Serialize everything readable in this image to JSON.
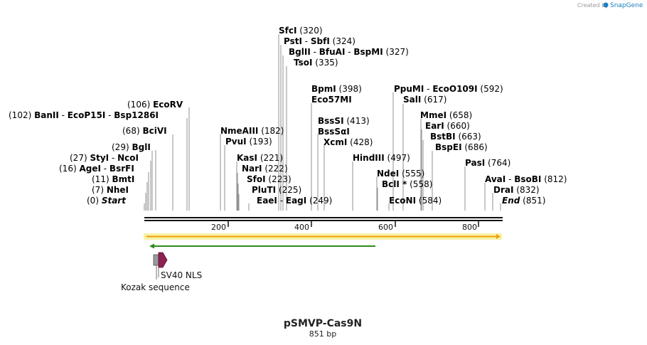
{
  "credit": {
    "prefix": "Created by",
    "brand": "SnapGene"
  },
  "title": "pSMVP-Cas9N",
  "subtitle": "851 bp",
  "scale_ticks": [
    "200",
    "400",
    "600",
    "800"
  ],
  "sites": [
    {
      "id": "start",
      "parts": [
        "Start"
      ],
      "pos": "(0)",
      "pos_first": true,
      "italic": true
    },
    {
      "id": "nhei",
      "parts": [
        "NheI"
      ],
      "pos": "(7)",
      "pos_first": true
    },
    {
      "id": "bmti",
      "parts": [
        "BmtI"
      ],
      "pos": "(11)",
      "pos_first": true
    },
    {
      "id": "agei",
      "parts": [
        "AgeI",
        "BsrFI"
      ],
      "pos": "(16)",
      "pos_first": true
    },
    {
      "id": "styi",
      "parts": [
        "StyI",
        "NcoI"
      ],
      "pos": "(27)",
      "pos_first": true
    },
    {
      "id": "bgli",
      "parts": [
        "BglI"
      ],
      "pos": "(29)",
      "pos_first": true
    },
    {
      "id": "bcivi",
      "parts": [
        "BciVI"
      ],
      "pos": "(68)",
      "pos_first": true
    },
    {
      "id": "banii",
      "parts": [
        "BanII",
        "EcoP15I",
        "Bsp1286I"
      ],
      "pos": "(102)",
      "pos_first": true
    },
    {
      "id": "ecorv",
      "parts": [
        "EcoRV"
      ],
      "pos": "(106)",
      "pos_first": true
    },
    {
      "id": "nmeaiii",
      "parts": [
        "NmeAIII"
      ],
      "pos": "(182)"
    },
    {
      "id": "pvui",
      "parts": [
        "PvuI"
      ],
      "pos": "(193)"
    },
    {
      "id": "kasi",
      "parts": [
        "KasI"
      ],
      "pos": "(221)"
    },
    {
      "id": "nari",
      "parts": [
        "NarI"
      ],
      "pos": "(222)"
    },
    {
      "id": "sfoi",
      "parts": [
        "SfoI"
      ],
      "pos": "(223)"
    },
    {
      "id": "pluti",
      "parts": [
        "PluTI"
      ],
      "pos": "(225)"
    },
    {
      "id": "eaei",
      "parts": [
        "EaeI",
        "EagI"
      ],
      "pos": "(249)"
    },
    {
      "id": "sfci",
      "parts": [
        "SfcI"
      ],
      "pos": "(320)"
    },
    {
      "id": "psti",
      "parts": [
        "PstI",
        "SbfI"
      ],
      "pos": "(324)"
    },
    {
      "id": "bglii",
      "parts": [
        "BglII",
        "BfuAI",
        "BspMI"
      ],
      "pos": "(327)"
    },
    {
      "id": "tsoi",
      "parts": [
        "TsoI"
      ],
      "pos": "(335)"
    },
    {
      "id": "bpmi",
      "parts": [
        "BpmI"
      ],
      "pos": "(398)"
    },
    {
      "id": "eco57mi",
      "parts": [
        "Eco57MI"
      ],
      "pos": ""
    },
    {
      "id": "bsssi",
      "parts": [
        "BssSI"
      ],
      "pos": "(413)"
    },
    {
      "id": "bsssai",
      "parts": [
        "BssSαI"
      ],
      "pos": ""
    },
    {
      "id": "xcmi",
      "parts": [
        "XcmI"
      ],
      "pos": "(428)"
    },
    {
      "id": "hindiii",
      "parts": [
        "HindIII"
      ],
      "pos": "(497)"
    },
    {
      "id": "ndei",
      "parts": [
        "NdeI"
      ],
      "pos": "(555)"
    },
    {
      "id": "bcli",
      "parts": [
        "BclI *"
      ],
      "pos": "(558)"
    },
    {
      "id": "econi",
      "parts": [
        "EcoNI"
      ],
      "pos": "(584)"
    },
    {
      "id": "ppumi",
      "parts": [
        "PpuMI",
        "EcoO109I"
      ],
      "pos": "(592)"
    },
    {
      "id": "sali",
      "parts": [
        "SalI"
      ],
      "pos": "(617)"
    },
    {
      "id": "mmei",
      "parts": [
        "MmeI"
      ],
      "pos": "(658)"
    },
    {
      "id": "eari",
      "parts": [
        "EarI"
      ],
      "pos": "(660)"
    },
    {
      "id": "bstbi",
      "parts": [
        "BstBI"
      ],
      "pos": "(663)"
    },
    {
      "id": "bspei",
      "parts": [
        "BspEI"
      ],
      "pos": "(686)"
    },
    {
      "id": "pasi",
      "parts": [
        "PasI"
      ],
      "pos": "(764)"
    },
    {
      "id": "avai",
      "parts": [
        "AvaI",
        "BsoBI"
      ],
      "pos": "(812)"
    },
    {
      "id": "drai",
      "parts": [
        "DraI"
      ],
      "pos": "(832)"
    },
    {
      "id": "end",
      "parts": [
        "End"
      ],
      "pos": "(851)",
      "italic": true
    }
  ],
  "features": [
    {
      "id": "sv40-nls",
      "label": "SV40 NLS",
      "color": "#8b2252"
    },
    {
      "id": "kozak",
      "label": "Kozak sequence",
      "color": "#9a9a9a"
    }
  ],
  "colors": {
    "backbone": "#111111",
    "orange_feature": "#f0a010",
    "green_feature": "#2e8b1e",
    "highlight": "#f6f2a8",
    "nls": "#8b2252",
    "kozak": "#9a9a9a"
  }
}
